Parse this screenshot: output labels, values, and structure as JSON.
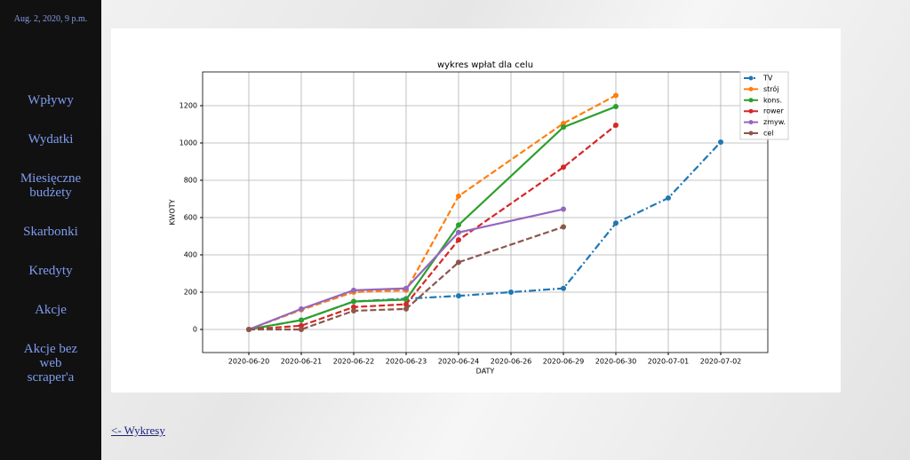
{
  "sidebar": {
    "date": "Aug. 2, 2020, 9 p.m.",
    "links": [
      "Wpływy",
      "Wydatki",
      "Miesięczne budżety",
      "Skarbonki",
      "Kredyty",
      "Akcje",
      "Akcje bez web scraper'a"
    ]
  },
  "back_link": "<- Wykresy",
  "chart_data": {
    "type": "line",
    "title": "wykres wpłat dla celu",
    "x_label": "DATY",
    "y_label": "KWOTY",
    "categories": [
      "2020-06-20",
      "2020-06-21",
      "2020-06-22",
      "2020-06-23",
      "2020-06-24",
      "2020-06-26",
      "2020-06-29",
      "2020-06-30",
      "2020-07-01",
      "2020-07-02"
    ],
    "series": [
      {
        "name": "TV",
        "color": "#1f77b4",
        "dash": "dashdot",
        "x": [
          "2020-06-20",
          "2020-06-21",
          "2020-06-22",
          "2020-06-23",
          "2020-06-24",
          "2020-06-26",
          "2020-06-29",
          "2020-06-30",
          "2020-07-01",
          "2020-07-02"
        ],
        "values": [
          0,
          50,
          150,
          165,
          180,
          200,
          220,
          570,
          705,
          1005
        ]
      },
      {
        "name": "strój",
        "color": "#ff7f0e",
        "dash": "dashed",
        "x": [
          "2020-06-20",
          "2020-06-21",
          "2020-06-22",
          "2020-06-23",
          "2020-06-24",
          "2020-06-29",
          "2020-06-30"
        ],
        "values": [
          0,
          105,
          200,
          210,
          715,
          1105,
          1255
        ]
      },
      {
        "name": "kons.",
        "color": "#2ca02c",
        "dash": "solid",
        "x": [
          "2020-06-20",
          "2020-06-21",
          "2020-06-22",
          "2020-06-23",
          "2020-06-24",
          "2020-06-29",
          "2020-06-30"
        ],
        "values": [
          0,
          50,
          150,
          160,
          560,
          1085,
          1195
        ]
      },
      {
        "name": "rower",
        "color": "#d62728",
        "dash": "dashed",
        "x": [
          "2020-06-20",
          "2020-06-21",
          "2020-06-22",
          "2020-06-23",
          "2020-06-24",
          "2020-06-29",
          "2020-06-30"
        ],
        "values": [
          0,
          20,
          120,
          135,
          480,
          870,
          1095
        ]
      },
      {
        "name": "zmyw.",
        "color": "#9467bd",
        "dash": "solid",
        "x": [
          "2020-06-20",
          "2020-06-21",
          "2020-06-22",
          "2020-06-23",
          "2020-06-24",
          "2020-06-29"
        ],
        "values": [
          0,
          110,
          210,
          220,
          520,
          645
        ]
      },
      {
        "name": "cel",
        "color": "#8c564b",
        "dash": "dashed",
        "x": [
          "2020-06-20",
          "2020-06-21",
          "2020-06-22",
          "2020-06-23",
          "2020-06-24",
          "2020-06-29"
        ],
        "values": [
          0,
          0,
          100,
          110,
          360,
          550
        ]
      }
    ],
    "ylim": [
      -124,
      1381
    ],
    "yticks": [
      0,
      200,
      400,
      600,
      800,
      1000,
      1200
    ],
    "grid": true,
    "legend": "upper right"
  }
}
